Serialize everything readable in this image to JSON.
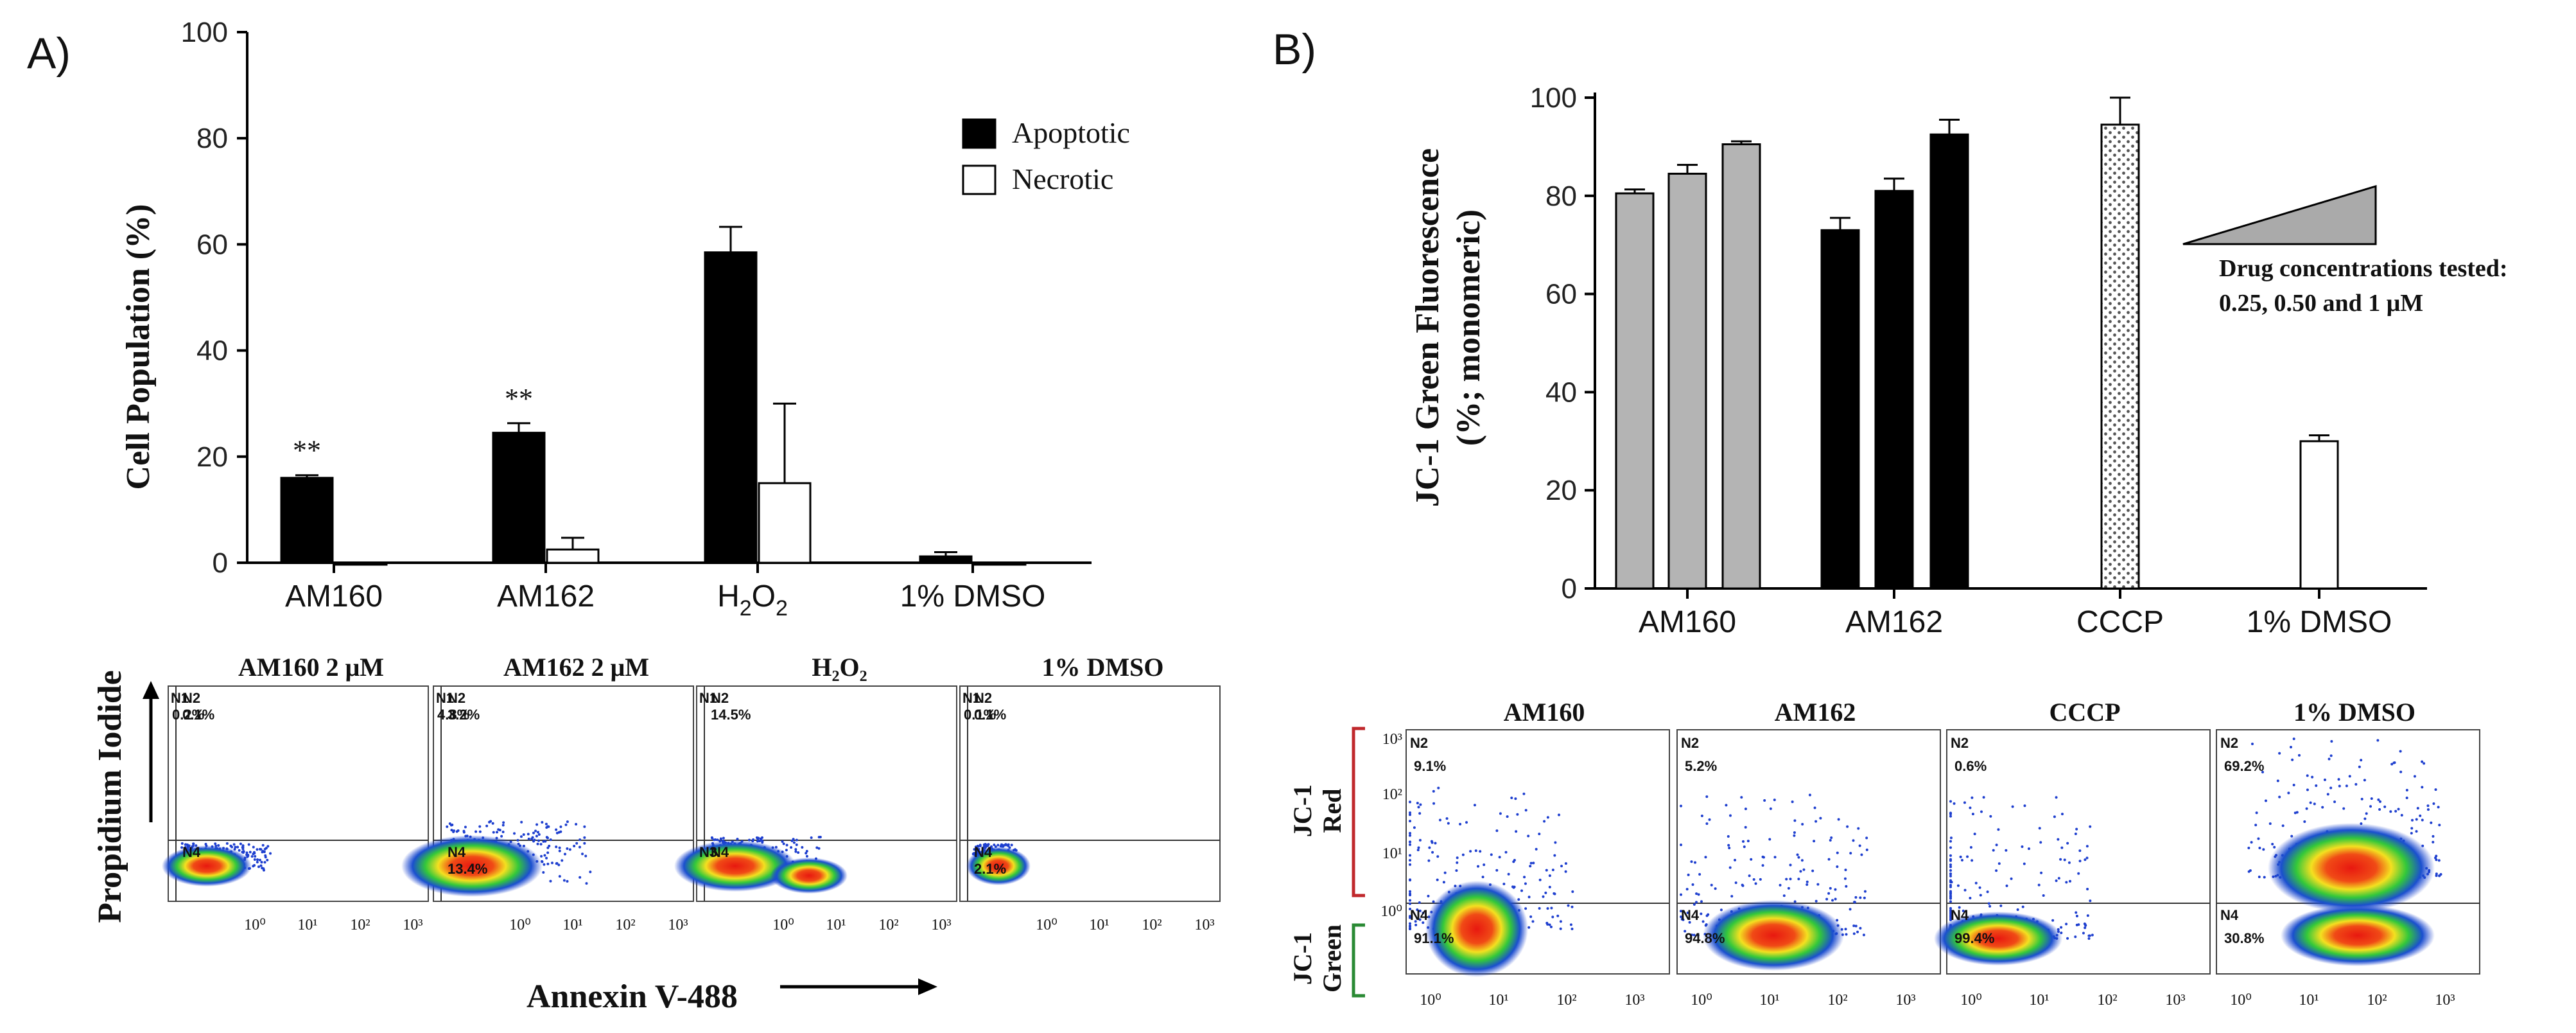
{
  "panelA": {
    "letter": "A)",
    "chart_data": {
      "type": "bar",
      "ylabel": "Cell Population (%)",
      "ylim": [
        0,
        100
      ],
      "yticks": [
        "0",
        "20",
        "40",
        "60",
        "80",
        "100"
      ],
      "categories": [
        "AM160",
        "AM162",
        "H2O2",
        "1% DMSO"
      ],
      "series": [
        {
          "name": "Apoptotic",
          "color": "#000000",
          "values": [
            16,
            24.5,
            58.5,
            1.2
          ],
          "errors": [
            0.5,
            1.8,
            4.8,
            0.8
          ]
        },
        {
          "name": "Necrotic",
          "color": "#ffffff",
          "values": [
            0,
            2.5,
            15,
            0
          ],
          "errors": [
            0,
            2.2,
            15,
            0
          ]
        }
      ],
      "annotations": [
        "**",
        "**"
      ],
      "legend": "top-right"
    },
    "flow": {
      "ylabel": "Propidium Iodide",
      "xlabel": "Annexin V-488",
      "xticks": [
        "10⁰",
        "10¹",
        "10²",
        "10³"
      ],
      "plots": [
        {
          "title": "AM160 2 μM",
          "q1_label": "N1",
          "q1_value": "0.2%",
          "q2_label": "N2",
          "q2_value": "0.1%",
          "q3_label": "",
          "q3_value": "",
          "q4_label": "N4",
          "q4_value": ""
        },
        {
          "title": "AM162 2 μM",
          "q1_label": "N1",
          "q1_value": "4.8%",
          "q2_label": "N2",
          "q2_value": "3.2%",
          "q3_label": "",
          "q3_value": "",
          "q4_label": "N4",
          "q4_value": "13.4%"
        },
        {
          "title": "H₂O₂",
          "q1_label": "N1",
          "q1_value": "",
          "q2_label": "N2",
          "q2_value": "14.5%",
          "q3_label": "N3",
          "q3_value": "",
          "q4_label": "N4",
          "q4_value": ""
        },
        {
          "title": "1% DMSO",
          "q1_label": "N1",
          "q1_value": "0.1%",
          "q2_label": "N2",
          "q2_value": "0.1%",
          "q3_label": "",
          "q3_value": "",
          "q4_label": "N4",
          "q4_value": "2.1%"
        }
      ]
    }
  },
  "panelB": {
    "letter": "B)",
    "chart_data": {
      "type": "bar",
      "ylabel_line1": "JC-1 Green Fluorescence",
      "ylabel_line2": "(%; monomeric)",
      "ylim": [
        0,
        100
      ],
      "yticks": [
        "0",
        "20",
        "40",
        "60",
        "80",
        "100"
      ],
      "categories": [
        "AM160",
        "AM162",
        "CCCP",
        "1% DMSO"
      ],
      "bars": [
        {
          "group": "AM160",
          "value": 80.5,
          "error": 0.8,
          "fill": "gray"
        },
        {
          "group": "AM160",
          "value": 84.5,
          "error": 1.8,
          "fill": "gray"
        },
        {
          "group": "AM160",
          "value": 90.5,
          "error": 0.6,
          "fill": "gray"
        },
        {
          "group": "AM162",
          "value": 73,
          "error": 2.5,
          "fill": "black"
        },
        {
          "group": "AM162",
          "value": 81,
          "error": 2.5,
          "fill": "black"
        },
        {
          "group": "AM162",
          "value": 92.5,
          "error": 3,
          "fill": "black"
        },
        {
          "group": "CCCP",
          "value": 94.5,
          "error": 5.5,
          "fill": "dotted"
        },
        {
          "group": "1% DMSO",
          "value": 30,
          "error": 1.2,
          "fill": "white"
        }
      ],
      "note_line1": "Drug concentrations tested:",
      "note_line2": "0.25, 0.50 and 1 μM"
    },
    "flow": {
      "yticks": [
        "10³",
        "10²",
        "10¹",
        "10⁰"
      ],
      "xticks": [
        "10⁰",
        "10¹",
        "10²",
        "10³"
      ],
      "red_label_1": "JC-1",
      "red_label_2": "Red",
      "green_label_1": "JC-1",
      "green_label_2": "Green",
      "plots": [
        {
          "title": "AM160",
          "top_label": "N2",
          "top_value": "9.1%",
          "bottom_label": "N4",
          "bottom_value": "91.1%"
        },
        {
          "title": "AM162",
          "top_label": "N2",
          "top_value": "5.2%",
          "bottom_label": "N4",
          "bottom_value": "94.8%"
        },
        {
          "title": "CCCP",
          "top_label": "N2",
          "top_value": "0.6%",
          "bottom_label": "N4",
          "bottom_value": "99.4%"
        },
        {
          "title": "1% DMSO",
          "top_label": "N2",
          "top_value": "69.2%",
          "bottom_label": "N4",
          "bottom_value": "30.8%"
        }
      ]
    }
  }
}
